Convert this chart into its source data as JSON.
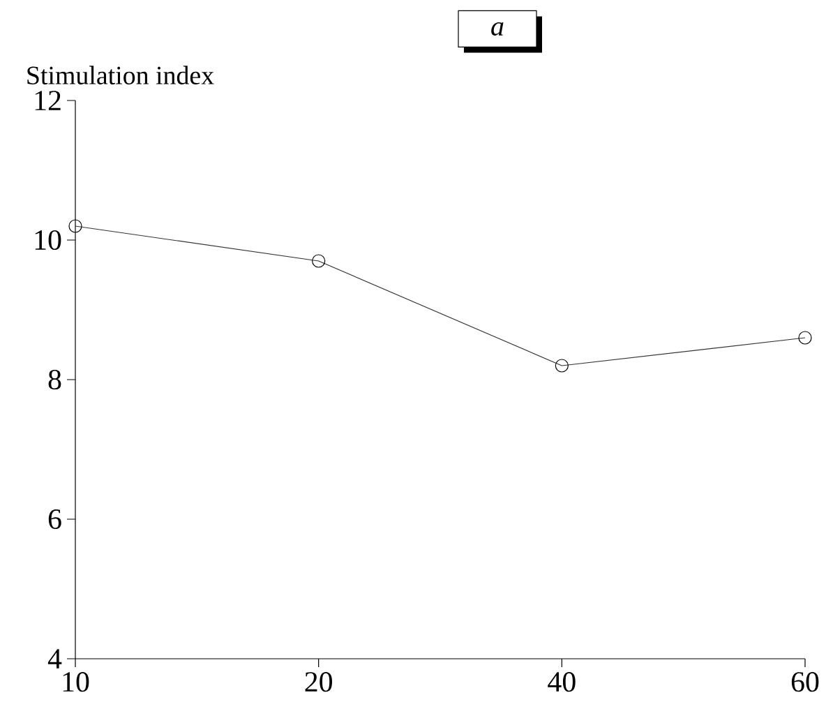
{
  "chart_data": {
    "type": "line",
    "title": "a",
    "ylabel": "Stimulation index",
    "categories": [
      "10",
      "20",
      "40",
      "60"
    ],
    "series": [
      {
        "color": "#333333",
        "values": [
          10.2,
          9.7,
          8.2,
          8.6
        ]
      }
    ],
    "ylim": [
      4,
      12
    ],
    "yticks": [
      4,
      6,
      8,
      10,
      12
    ],
    "marker": "circle",
    "line_style": "solid"
  }
}
